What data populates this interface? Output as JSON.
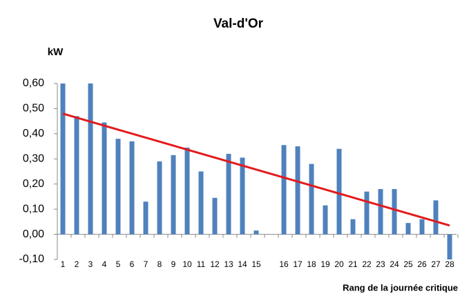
{
  "chart_data": {
    "type": "bar",
    "title": "Val-d'Or",
    "y_label": "kW",
    "x_label": "Rang de la journée critique",
    "categories": [
      "1",
      "2",
      "3",
      "4",
      "5",
      "6",
      "7",
      "8",
      "9",
      "10",
      "11",
      "12",
      "13",
      "14",
      "15",
      null,
      "16",
      "17",
      "18",
      "19",
      "20",
      "21",
      "22",
      "23",
      "24",
      "25",
      "26",
      "27",
      "28"
    ],
    "values": [
      0.6,
      0.47,
      0.6,
      0.445,
      0.38,
      0.37,
      0.13,
      0.29,
      0.315,
      0.345,
      0.25,
      0.145,
      0.32,
      0.305,
      0.015,
      null,
      0.355,
      0.35,
      0.28,
      0.115,
      0.34,
      0.06,
      0.17,
      0.18,
      0.18,
      0.045,
      0.06,
      0.135,
      -0.1
    ],
    "color": "#4f81bd",
    "ylim": [
      -0.1,
      0.6
    ],
    "yticks": [
      {
        "value": -0.1,
        "label": "-0,10"
      },
      {
        "value": 0,
        "label": "0,00"
      },
      {
        "value": 0.1,
        "label": "0,10"
      },
      {
        "value": 0.2,
        "label": "0,20"
      },
      {
        "value": 0.3,
        "label": "0,30"
      },
      {
        "value": 0.4,
        "label": "0,40"
      },
      {
        "value": 0.5,
        "label": "0,50"
      },
      {
        "value": 0.6,
        "label": "0,60"
      }
    ],
    "grid": false,
    "trendline": {
      "start": 0.48,
      "end": 0.035,
      "color": "#e31a1c"
    }
  }
}
